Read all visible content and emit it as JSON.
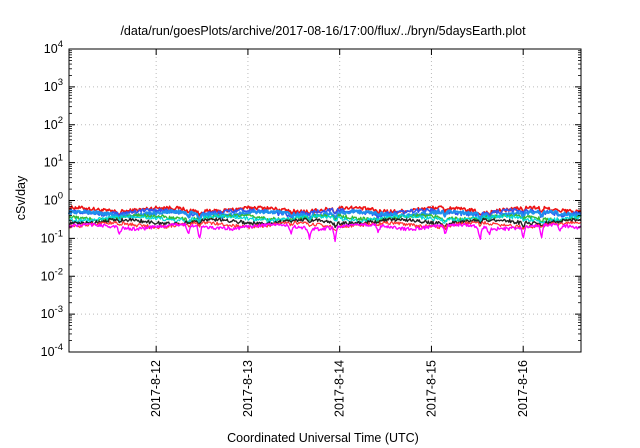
{
  "chart_data": {
    "type": "line",
    "title": "/data/run/goesPlots/archive/2017-08-16/17:00/flux/../bryn/5daysEarth.plot",
    "xlabel": "Coordinated Universal Time (UTC)",
    "ylabel": "cSv/day",
    "yscale": "log",
    "ylim": [
      0.0001,
      10000
    ],
    "yticks": [
      {
        "base": "10",
        "exp": "-4"
      },
      {
        "base": "10",
        "exp": "-3"
      },
      {
        "base": "10",
        "exp": "-2"
      },
      {
        "base": "10",
        "exp": "-1"
      },
      {
        "base": "10",
        "exp": "0"
      },
      {
        "base": "10",
        "exp": "1"
      },
      {
        "base": "10",
        "exp": "2"
      },
      {
        "base": "10",
        "exp": "3"
      },
      {
        "base": "10",
        "exp": "4"
      }
    ],
    "xlim": [
      0,
      5.58
    ],
    "xticks": [
      {
        "x": 0.95,
        "label": "2017-8-12"
      },
      {
        "x": 1.95,
        "label": "2017-8-13"
      },
      {
        "x": 2.95,
        "label": "2017-8-14"
      },
      {
        "x": 3.95,
        "label": "2017-8-15"
      },
      {
        "x": 4.95,
        "label": "2017-8-16"
      }
    ],
    "grid": true,
    "series": [
      {
        "color": "#ee1111",
        "base": 0.58,
        "amp": 0.07,
        "dipScale": 0.45,
        "width": 1.6,
        "phase": 1.3
      },
      {
        "color": "#3355ee",
        "base": 0.5,
        "amp": 0.06,
        "dipScale": 0.45,
        "width": 1.6,
        "phase": 2.1
      },
      {
        "color": "#1f8fee",
        "base": 0.45,
        "amp": 0.05,
        "dipScale": 0.5,
        "width": 2.2,
        "phase": 0.7
      },
      {
        "color": "#33bb33",
        "base": 0.36,
        "amp": 0.04,
        "dipScale": 0.4,
        "width": 1.4,
        "phase": 2.8
      },
      {
        "color": "#00d8d8",
        "base": 0.34,
        "amp": 0.04,
        "dipScale": 0.35,
        "width": 1.2,
        "phase": 3.6
      },
      {
        "color": "#222222",
        "base": 0.28,
        "amp": 0.03,
        "dipScale": 0.35,
        "width": 1.4,
        "phase": 4.2
      },
      {
        "color": "#ff3333",
        "base": 0.23,
        "amp": 0.025,
        "dipScale": 0.3,
        "width": 1.2,
        "phase": 5.0
      },
      {
        "color": "#ff00ff",
        "base": 0.205,
        "amp": 0.02,
        "dipScale": 1.0,
        "width": 1.4,
        "phase": 0.2
      }
    ],
    "dips": [
      0.55,
      1.3,
      1.42,
      2.42,
      2.62,
      2.9,
      3.37,
      4.1,
      4.48,
      4.58,
      4.95,
      5.15,
      5.35
    ]
  }
}
